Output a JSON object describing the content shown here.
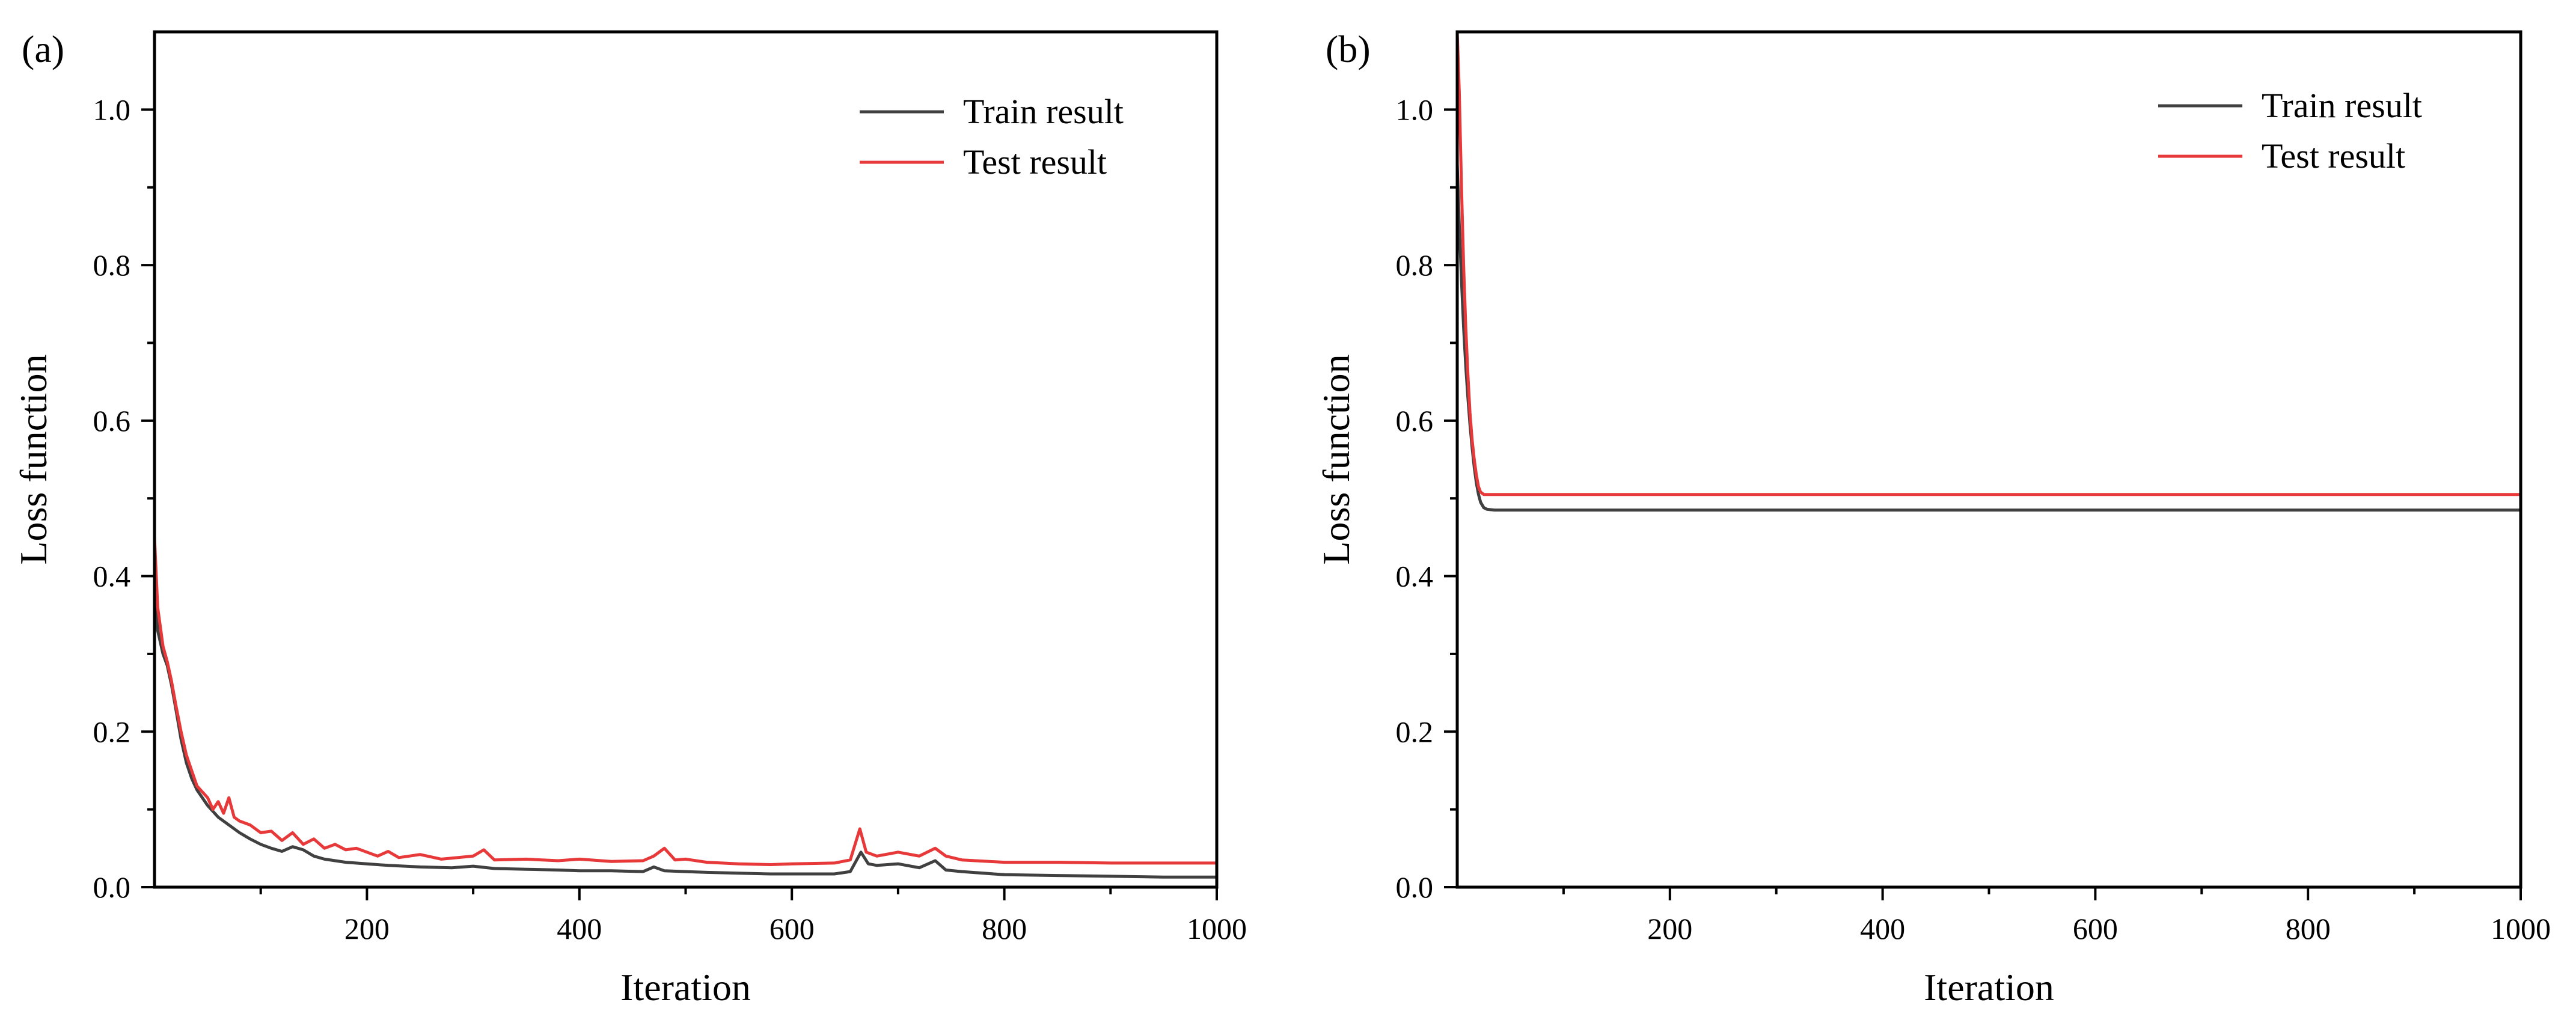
{
  "chart_data": [
    {
      "type": "line",
      "panel_label": "(a)",
      "title": "",
      "xlabel": "Iteration",
      "ylabel": "Loss function",
      "xlim": [
        0,
        1000
      ],
      "ylim": [
        0,
        1.1
      ],
      "x_ticks": [
        200,
        400,
        600,
        800,
        1000
      ],
      "x_tick_labels": [
        "200",
        "400",
        "600",
        "800",
        "1000"
      ],
      "x_minor_ticks": [
        100,
        300,
        500,
        700,
        900
      ],
      "y_ticks": [
        0.0,
        0.2,
        0.4,
        0.6,
        0.8,
        1.0
      ],
      "y_tick_labels": [
        "0.0",
        "0.2",
        "0.4",
        "0.6",
        "0.8",
        "1.0"
      ],
      "y_minor_ticks": [
        0.1,
        0.3,
        0.5,
        0.7,
        0.9
      ],
      "grid": false,
      "legend_position": "top-right",
      "series": [
        {
          "name": "Train result",
          "color": "#404040",
          "points": [
            [
              0,
              0.42
            ],
            [
              3,
              0.33
            ],
            [
              8,
              0.3
            ],
            [
              12,
              0.285
            ],
            [
              16,
              0.26
            ],
            [
              20,
              0.23
            ],
            [
              25,
              0.19
            ],
            [
              30,
              0.16
            ],
            [
              35,
              0.14
            ],
            [
              40,
              0.125
            ],
            [
              50,
              0.105
            ],
            [
              60,
              0.09
            ],
            [
              70,
              0.08
            ],
            [
              80,
              0.07
            ],
            [
              90,
              0.062
            ],
            [
              100,
              0.055
            ],
            [
              110,
              0.05
            ],
            [
              120,
              0.046
            ],
            [
              130,
              0.052
            ],
            [
              140,
              0.048
            ],
            [
              150,
              0.04
            ],
            [
              160,
              0.036
            ],
            [
              180,
              0.032
            ],
            [
              200,
              0.03
            ],
            [
              220,
              0.028
            ],
            [
              250,
              0.026
            ],
            [
              280,
              0.025
            ],
            [
              300,
              0.027
            ],
            [
              320,
              0.024
            ],
            [
              350,
              0.023
            ],
            [
              380,
              0.022
            ],
            [
              400,
              0.021
            ],
            [
              430,
              0.021
            ],
            [
              460,
              0.02
            ],
            [
              470,
              0.026
            ],
            [
              480,
              0.021
            ],
            [
              500,
              0.02
            ],
            [
              520,
              0.019
            ],
            [
              550,
              0.018
            ],
            [
              580,
              0.017
            ],
            [
              600,
              0.017
            ],
            [
              640,
              0.017
            ],
            [
              655,
              0.02
            ],
            [
              665,
              0.045
            ],
            [
              672,
              0.03
            ],
            [
              680,
              0.028
            ],
            [
              700,
              0.03
            ],
            [
              720,
              0.025
            ],
            [
              735,
              0.034
            ],
            [
              745,
              0.022
            ],
            [
              760,
              0.02
            ],
            [
              800,
              0.016
            ],
            [
              850,
              0.015
            ],
            [
              900,
              0.014
            ],
            [
              950,
              0.013
            ],
            [
              1000,
              0.013
            ]
          ]
        },
        {
          "name": "Test result",
          "color": "#e8393a",
          "points": [
            [
              0,
              0.45
            ],
            [
              3,
              0.36
            ],
            [
              8,
              0.31
            ],
            [
              12,
              0.29
            ],
            [
              16,
              0.265
            ],
            [
              20,
              0.235
            ],
            [
              25,
              0.2
            ],
            [
              30,
              0.17
            ],
            [
              35,
              0.15
            ],
            [
              40,
              0.13
            ],
            [
              50,
              0.115
            ],
            [
              55,
              0.1
            ],
            [
              60,
              0.11
            ],
            [
              65,
              0.095
            ],
            [
              70,
              0.115
            ],
            [
              75,
              0.09
            ],
            [
              80,
              0.085
            ],
            [
              90,
              0.08
            ],
            [
              100,
              0.07
            ],
            [
              110,
              0.072
            ],
            [
              120,
              0.06
            ],
            [
              130,
              0.07
            ],
            [
              140,
              0.055
            ],
            [
              150,
              0.062
            ],
            [
              160,
              0.05
            ],
            [
              170,
              0.055
            ],
            [
              180,
              0.048
            ],
            [
              190,
              0.05
            ],
            [
              200,
              0.045
            ],
            [
              210,
              0.04
            ],
            [
              220,
              0.046
            ],
            [
              230,
              0.038
            ],
            [
              250,
              0.042
            ],
            [
              270,
              0.036
            ],
            [
              300,
              0.04
            ],
            [
              310,
              0.048
            ],
            [
              320,
              0.035
            ],
            [
              350,
              0.036
            ],
            [
              380,
              0.034
            ],
            [
              400,
              0.036
            ],
            [
              430,
              0.033
            ],
            [
              460,
              0.034
            ],
            [
              470,
              0.04
            ],
            [
              480,
              0.05
            ],
            [
              490,
              0.035
            ],
            [
              500,
              0.036
            ],
            [
              520,
              0.032
            ],
            [
              550,
              0.03
            ],
            [
              580,
              0.029
            ],
            [
              600,
              0.03
            ],
            [
              640,
              0.031
            ],
            [
              655,
              0.035
            ],
            [
              664,
              0.075
            ],
            [
              670,
              0.045
            ],
            [
              680,
              0.04
            ],
            [
              700,
              0.045
            ],
            [
              720,
              0.04
            ],
            [
              735,
              0.05
            ],
            [
              745,
              0.04
            ],
            [
              760,
              0.035
            ],
            [
              800,
              0.032
            ],
            [
              850,
              0.032
            ],
            [
              900,
              0.031
            ],
            [
              950,
              0.031
            ],
            [
              1000,
              0.031
            ]
          ]
        }
      ]
    },
    {
      "type": "line",
      "panel_label": "(b)",
      "title": "",
      "xlabel": "Iteration",
      "ylabel": "Loss function",
      "xlim": [
        0,
        1000
      ],
      "ylim": [
        0,
        1.1
      ],
      "x_ticks": [
        200,
        400,
        600,
        800,
        1000
      ],
      "x_tick_labels": [
        "200",
        "400",
        "600",
        "800",
        "1000"
      ],
      "x_minor_ticks": [
        100,
        300,
        500,
        700,
        900
      ],
      "y_ticks": [
        0.0,
        0.2,
        0.4,
        0.6,
        0.8,
        1.0
      ],
      "y_tick_labels": [
        "0.0",
        "0.2",
        "0.4",
        "0.6",
        "0.8",
        "1.0"
      ],
      "y_minor_ticks": [
        0.1,
        0.3,
        0.5,
        0.7,
        0.9
      ],
      "grid": false,
      "legend_position": "top-right",
      "series": [
        {
          "name": "Train result",
          "color": "#404040",
          "points": [
            [
              0,
              0.93
            ],
            [
              2,
              0.85
            ],
            [
              4,
              0.78
            ],
            [
              6,
              0.72
            ],
            [
              8,
              0.67
            ],
            [
              10,
              0.63
            ],
            [
              12,
              0.595
            ],
            [
              14,
              0.565
            ],
            [
              16,
              0.54
            ],
            [
              18,
              0.52
            ],
            [
              20,
              0.505
            ],
            [
              22,
              0.495
            ],
            [
              25,
              0.488
            ],
            [
              28,
              0.486
            ],
            [
              35,
              0.485
            ],
            [
              1000,
              0.485
            ]
          ]
        },
        {
          "name": "Test result",
          "color": "#e8393a",
          "points": [
            [
              0,
              1.1
            ],
            [
              2,
              1.02
            ],
            [
              4,
              0.9
            ],
            [
              6,
              0.8
            ],
            [
              8,
              0.72
            ],
            [
              10,
              0.66
            ],
            [
              12,
              0.61
            ],
            [
              14,
              0.575
            ],
            [
              16,
              0.55
            ],
            [
              18,
              0.53
            ],
            [
              20,
              0.515
            ],
            [
              22,
              0.508
            ],
            [
              25,
              0.505
            ],
            [
              1000,
              0.505
            ]
          ]
        }
      ]
    }
  ]
}
